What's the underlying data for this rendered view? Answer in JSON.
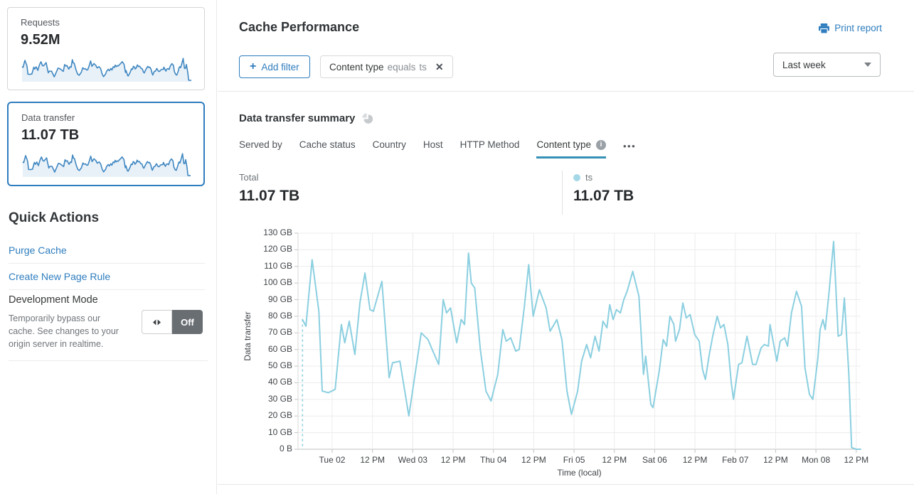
{
  "colors": {
    "accent_blue": "#2e7dbe",
    "chart_line": "#8bcfe0",
    "legend_dot": "#a5d8e7",
    "spark_line": "#3f87c1",
    "spark_fill": "#e9f1f8",
    "tab_underline": "#3691b6",
    "toggle_dark": "#696e73",
    "gridline": "#ececec",
    "axis_line": "#c2c2c2"
  },
  "sidebar": {
    "cards": [
      {
        "label": "Requests",
        "value": "9.52M",
        "selected": false
      },
      {
        "label": "Data transfer",
        "value": "11.07 TB",
        "selected": true
      }
    ],
    "quick_actions": {
      "title": "Quick Actions",
      "links": [
        "Purge Cache",
        "Create New Page Rule"
      ],
      "dev_mode": {
        "title": "Development Mode",
        "description": "Temporarily bypass our cache. See changes to your origin server in realtime.",
        "toggle_state": "Off"
      }
    }
  },
  "header": {
    "title": "Cache Performance",
    "print_label": "Print report",
    "add_filter": {
      "plus": "+",
      "label": "Add filter"
    },
    "filter_chip": {
      "field": "Content type",
      "operator": "equals",
      "value": "ts",
      "close": "✕"
    },
    "time_range": "Last week"
  },
  "summary": {
    "title": "Data transfer summary",
    "tabs": [
      {
        "label": "Served by",
        "active": false,
        "has_info": false
      },
      {
        "label": "Cache status",
        "active": false,
        "has_info": false
      },
      {
        "label": "Country",
        "active": false,
        "has_info": false
      },
      {
        "label": "Host",
        "active": false,
        "has_info": false
      },
      {
        "label": "HTTP Method",
        "active": false,
        "has_info": false
      },
      {
        "label": "Content type",
        "active": true,
        "has_info": true
      }
    ],
    "more_label": "•••",
    "total_label": "Total",
    "total_value": "11.07 TB",
    "legend": {
      "name": "ts",
      "value": "11.07 TB"
    }
  },
  "chart_data": {
    "type": "line",
    "title": "Data transfer summary",
    "xlabel": "Time (local)",
    "ylabel": "Data transfer",
    "ylim": [
      0,
      130
    ],
    "y_unit": "GB",
    "grid": true,
    "y_ticks": [
      "130 GB",
      "120 GB",
      "110 GB",
      "100 GB",
      "90 GB",
      "80 GB",
      "70 GB",
      "60 GB",
      "50 GB",
      "40 GB",
      "30 GB",
      "20 GB",
      "10 GB",
      "0 B"
    ],
    "x_ticks": [
      "Tue 02",
      "12 PM",
      "Wed 03",
      "12 PM",
      "Thu 04",
      "12 PM",
      "Fri 05",
      "12 PM",
      "Sat 06",
      "12 PM",
      "Feb 07",
      "12 PM",
      "Mon 08",
      "12 PM"
    ],
    "first_tick_fraction": 0.0607,
    "tick_step_fraction": 0.07165,
    "dashed_start": true,
    "series": [
      {
        "name": "ts",
        "unit": "GB",
        "points": [
          [
            0.008,
            78
          ],
          [
            0.014,
            74
          ],
          [
            0.025,
            114
          ],
          [
            0.037,
            83
          ],
          [
            0.043,
            35
          ],
          [
            0.054,
            34
          ],
          [
            0.066,
            36
          ],
          [
            0.077,
            75
          ],
          [
            0.083,
            64
          ],
          [
            0.091,
            77
          ],
          [
            0.101,
            57
          ],
          [
            0.11,
            88
          ],
          [
            0.119,
            106
          ],
          [
            0.128,
            84
          ],
          [
            0.134,
            83
          ],
          [
            0.149,
            101
          ],
          [
            0.162,
            43
          ],
          [
            0.168,
            52
          ],
          [
            0.181,
            53
          ],
          [
            0.197,
            20
          ],
          [
            0.219,
            70
          ],
          [
            0.231,
            66
          ],
          [
            0.241,
            58
          ],
          [
            0.25,
            51
          ],
          [
            0.258,
            90
          ],
          [
            0.264,
            82
          ],
          [
            0.271,
            85
          ],
          [
            0.282,
            64
          ],
          [
            0.29,
            78
          ],
          [
            0.296,
            75
          ],
          [
            0.303,
            118
          ],
          [
            0.308,
            100
          ],
          [
            0.314,
            97
          ],
          [
            0.324,
            60
          ],
          [
            0.334,
            35
          ],
          [
            0.343,
            29
          ],
          [
            0.355,
            45
          ],
          [
            0.364,
            72
          ],
          [
            0.37,
            65
          ],
          [
            0.378,
            67
          ],
          [
            0.387,
            59
          ],
          [
            0.393,
            60
          ],
          [
            0.402,
            85
          ],
          [
            0.41,
            111
          ],
          [
            0.418,
            80
          ],
          [
            0.429,
            96
          ],
          [
            0.441,
            85
          ],
          [
            0.448,
            71
          ],
          [
            0.46,
            78
          ],
          [
            0.469,
            66
          ],
          [
            0.478,
            35
          ],
          [
            0.486,
            21
          ],
          [
            0.497,
            35
          ],
          [
            0.504,
            53
          ],
          [
            0.513,
            63
          ],
          [
            0.52,
            55
          ],
          [
            0.528,
            68
          ],
          [
            0.535,
            59
          ],
          [
            0.542,
            77
          ],
          [
            0.549,
            73
          ],
          [
            0.554,
            87
          ],
          [
            0.56,
            78
          ],
          [
            0.566,
            84
          ],
          [
            0.573,
            82
          ],
          [
            0.579,
            90
          ],
          [
            0.585,
            95
          ],
          [
            0.595,
            107
          ],
          [
            0.606,
            92
          ],
          [
            0.614,
            45
          ],
          [
            0.618,
            56
          ],
          [
            0.627,
            27
          ],
          [
            0.631,
            25
          ],
          [
            0.642,
            47
          ],
          [
            0.649,
            66
          ],
          [
            0.655,
            62
          ],
          [
            0.661,
            80
          ],
          [
            0.668,
            75
          ],
          [
            0.671,
            65
          ],
          [
            0.678,
            72
          ],
          [
            0.684,
            88
          ],
          [
            0.69,
            79
          ],
          [
            0.697,
            81
          ],
          [
            0.705,
            69
          ],
          [
            0.713,
            65
          ],
          [
            0.719,
            48
          ],
          [
            0.724,
            42
          ],
          [
            0.731,
            57
          ],
          [
            0.737,
            68
          ],
          [
            0.745,
            80
          ],
          [
            0.751,
            73
          ],
          [
            0.757,
            75
          ],
          [
            0.764,
            63
          ],
          [
            0.77,
            40
          ],
          [
            0.774,
            30
          ],
          [
            0.783,
            51
          ],
          [
            0.789,
            52
          ],
          [
            0.798,
            68
          ],
          [
            0.808,
            51
          ],
          [
            0.814,
            51
          ],
          [
            0.823,
            61
          ],
          [
            0.829,
            63
          ],
          [
            0.836,
            62
          ],
          [
            0.839,
            75
          ],
          [
            0.851,
            53
          ],
          [
            0.857,
            65
          ],
          [
            0.865,
            67
          ],
          [
            0.87,
            62
          ],
          [
            0.877,
            82
          ],
          [
            0.886,
            95
          ],
          [
            0.895,
            86
          ],
          [
            0.901,
            49
          ],
          [
            0.909,
            33
          ],
          [
            0.915,
            30
          ],
          [
            0.924,
            55
          ],
          [
            0.928,
            72
          ],
          [
            0.933,
            78
          ],
          [
            0.937,
            72
          ],
          [
            0.944,
            95
          ],
          [
            0.952,
            125
          ],
          [
            0.96,
            68
          ],
          [
            0.966,
            69
          ],
          [
            0.971,
            91
          ],
          [
            0.979,
            45
          ],
          [
            0.984,
            1
          ],
          [
            0.992,
            0
          ],
          [
            1.0,
            0
          ]
        ]
      }
    ]
  }
}
